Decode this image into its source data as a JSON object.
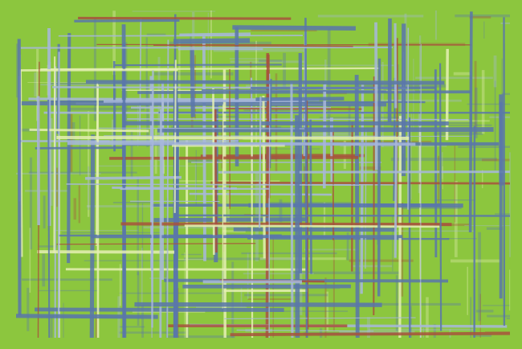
{
  "artwork": {
    "name": "abstract-plaid-pattern",
    "background_color": "#8cc63e",
    "stroke_colors": {
      "blue": "#5a77ab",
      "light_blue": "#a8b8dc",
      "cream": "#e6f0b4",
      "red_brown": "#a8533c"
    }
  }
}
